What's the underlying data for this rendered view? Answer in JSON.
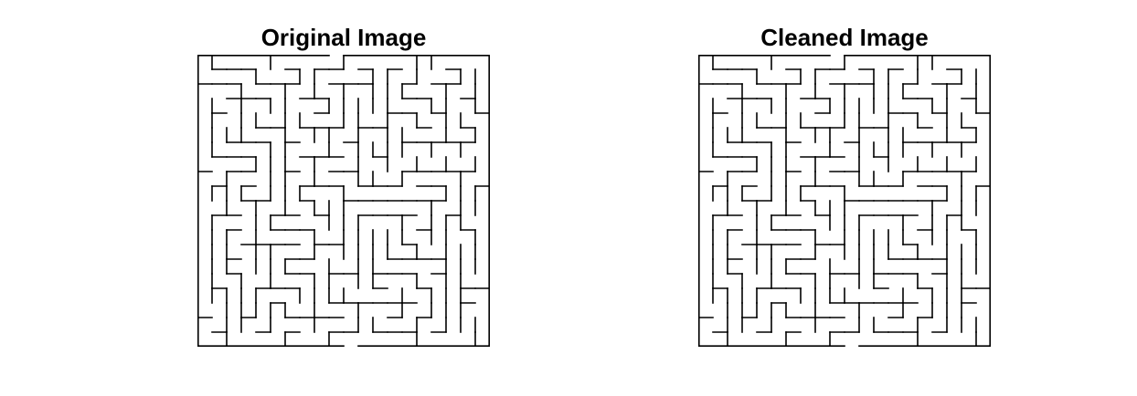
{
  "figure": {
    "panels": [
      {
        "title": "Original Image",
        "image_kind": "binary-maze",
        "line_color": "#000000",
        "background_color": "#ffffff"
      },
      {
        "title": "Cleaned Image",
        "image_kind": "binary-maze",
        "line_color": "#000000",
        "background_color": "#ffffff"
      }
    ]
  }
}
